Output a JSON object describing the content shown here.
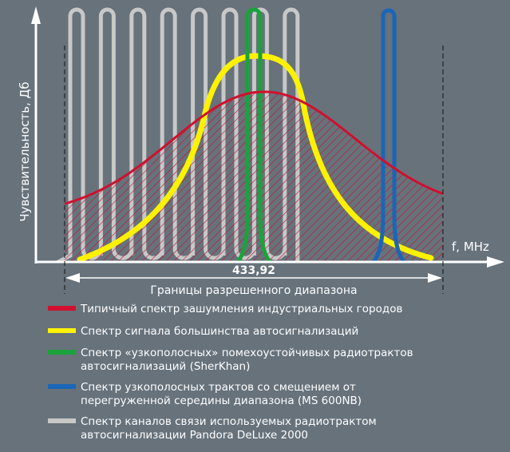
{
  "chart_data": {
    "type": "line",
    "title": "",
    "xlabel": "f, MHz",
    "ylabel": "Чувствительность, Дб",
    "center_frequency_label": "433,92",
    "range_label": "Границы разрешенного диапазона",
    "grid": false,
    "legend_position": "bottom",
    "series": [
      {
        "name": "Типичный спектр зашумления индустриальных городов",
        "color": "#d0102e"
      },
      {
        "name": "Спектр сигнала большинства автосигнализаций",
        "color": "#fff200"
      },
      {
        "name": "Спектр «узкополосных» помехоустойчивых радиотрактов автосигнализаций (SherKhan)",
        "lines": [
          "Спектр «узкополосных» помехоустойчивых радиотрактов",
          "автосигнализаций (SherKhan)"
        ],
        "color": "#1aa33a"
      },
      {
        "name": "Спектр узкополосных трактов со смещением от перегруженной середины диапазона (MS 600NB)",
        "lines": [
          "Спектр узкополосных трактов со смещением от",
          "перегруженной середины диапазона (MS 600NB)"
        ],
        "color": "#1a66b8"
      },
      {
        "name": "Спектр каналов связи используемых радиотрактом автосигнализации Pandora DeLuxe 2000",
        "lines": [
          "Спектр каналов связи используемых радиотрактом",
          "автосигнализации Pandora DeLuxe 2000"
        ],
        "color": "#c8c8c8"
      }
    ]
  }
}
